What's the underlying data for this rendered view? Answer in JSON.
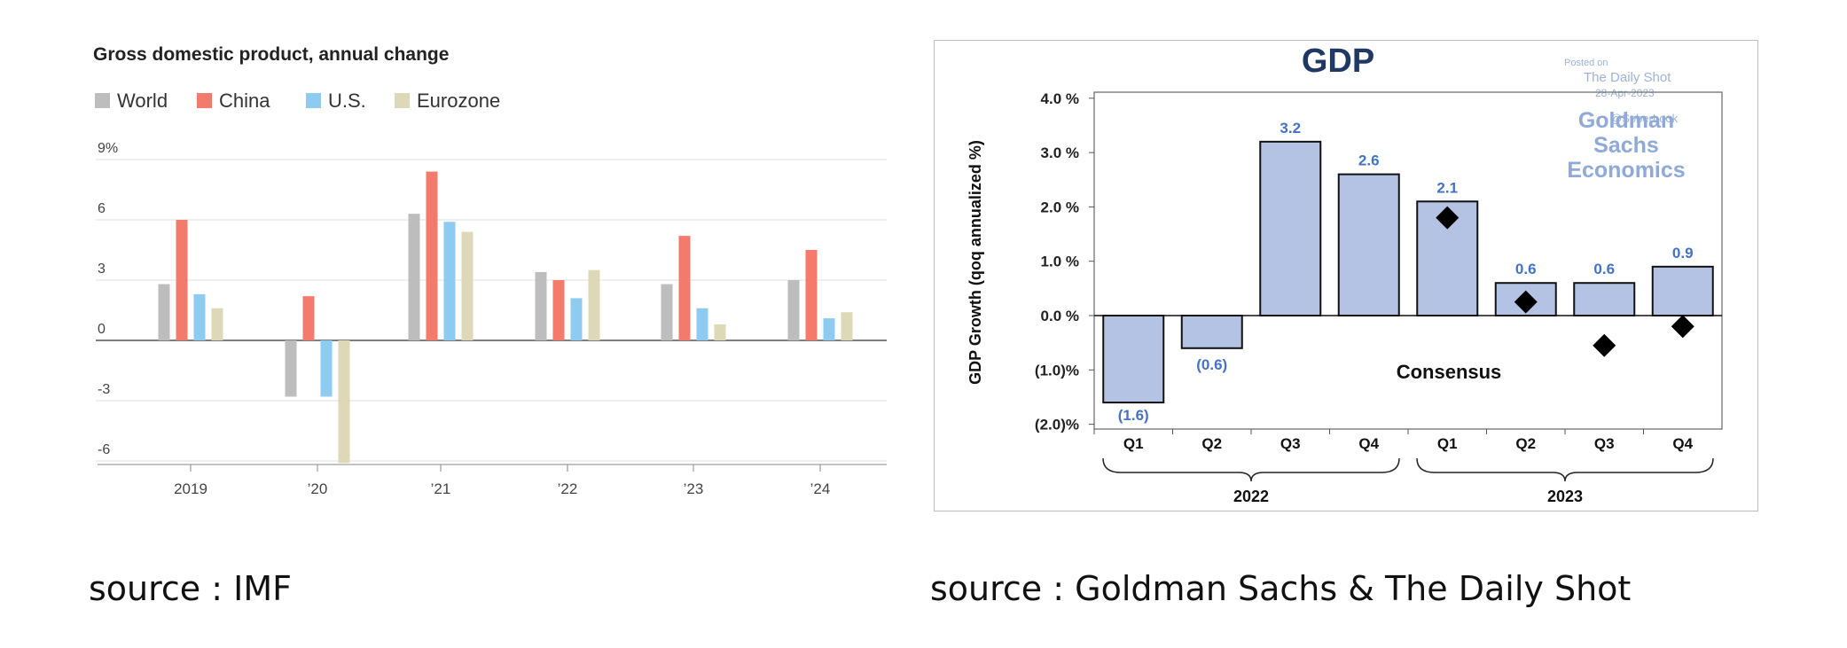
{
  "captions": {
    "left": "source : IMF",
    "right": "source : Goldman Sachs & The Daily Shot"
  },
  "chart_data": [
    {
      "type": "bar",
      "title": "Gross domestic product, annual change",
      "categories": [
        "2019",
        "’20",
        "’21",
        "’22",
        "’23",
        "’24"
      ],
      "series": [
        {
          "name": "World",
          "color": "#bdbdbd",
          "values": [
            2.8,
            -2.8,
            6.3,
            3.4,
            2.8,
            3.0
          ]
        },
        {
          "name": "China",
          "color": "#f47b6b",
          "values": [
            6.0,
            2.2,
            8.4,
            3.0,
            5.2,
            4.5
          ]
        },
        {
          "name": "U.S.",
          "color": "#8ecbf0",
          "values": [
            2.3,
            -2.8,
            5.9,
            2.1,
            1.6,
            1.1
          ]
        },
        {
          "name": "Eurozone",
          "color": "#ddd8b8",
          "values": [
            1.6,
            -6.1,
            5.4,
            3.5,
            0.8,
            1.4
          ]
        }
      ],
      "y_ticks": [
        9,
        6,
        3,
        0,
        -3,
        -6
      ],
      "y_tick_labels": [
        "9%",
        "6",
        "3",
        "0",
        "-3",
        "-6"
      ],
      "ylim": [
        -6.5,
        9
      ],
      "grid": true,
      "legend": "top-left"
    },
    {
      "type": "bar",
      "title": "GDP",
      "ylabel": "GDP Growth (qoq annualized %)",
      "categories": [
        "Q1",
        "Q2",
        "Q3",
        "Q4",
        "Q1",
        "Q2",
        "Q3",
        "Q4"
      ],
      "groups": [
        {
          "label": "2022",
          "from": 0,
          "to": 3
        },
        {
          "label": "2023",
          "from": 4,
          "to": 7
        }
      ],
      "values": [
        -1.6,
        -0.6,
        3.2,
        2.6,
        2.1,
        0.6,
        0.6,
        0.9
      ],
      "value_labels": [
        "(1.6)",
        "(0.6)",
        "3.2",
        "2.6",
        "2.1",
        "0.6",
        "0.6",
        "0.9"
      ],
      "consensus": {
        "label": "Consensus",
        "values": [
          null,
          null,
          null,
          null,
          1.8,
          0.25,
          -0.55,
          -0.2
        ]
      },
      "y_ticks": [
        4,
        3,
        2,
        1,
        0,
        -1,
        -2
      ],
      "y_tick_labels": [
        "4.0 %",
        "3.0 %",
        "2.0 %",
        "1.0 %",
        "0.0 %",
        "(1.0)%",
        "(2.0)%"
      ],
      "ylim": [
        -2.0,
        4.0
      ],
      "bar_color": "#b4c3e3",
      "watermark": {
        "posted_on": "Posted on",
        "source": "The Daily Shot",
        "date": "28-Apr-2023",
        "handle": "@SoberLook"
      },
      "brand": [
        "Goldman",
        "Sachs",
        "Economics"
      ],
      "colors": {
        "title": "#1f3864",
        "brand": "#8fa9d8",
        "labels": "#4472c4"
      }
    }
  ]
}
